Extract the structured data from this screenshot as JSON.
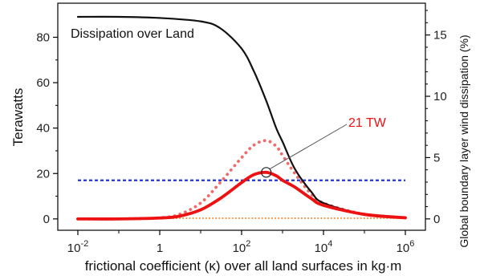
{
  "chart_data": {
    "type": "line",
    "xlabel": "frictional coefficient (κ) over all land surfaces in kg·m",
    "ylabel": "Terawatts",
    "y2label": "Global boundary layer wind dissipation (%)",
    "xscale": "log",
    "xlim": [
      0.01,
      1000000
    ],
    "ylim": [
      -5,
      95
    ],
    "y2lim": [
      -0.926,
      17.59
    ],
    "x_ticks": [
      {
        "value": 0.01,
        "base": "10",
        "exp": "-2"
      },
      {
        "value": 1,
        "base": "1",
        "exp": ""
      },
      {
        "value": 100,
        "base": "10",
        "exp": "2"
      },
      {
        "value": 10000,
        "base": "10",
        "exp": "4"
      },
      {
        "value": 1000000,
        "base": "10",
        "exp": "6"
      }
    ],
    "y_ticks": [
      0,
      20,
      40,
      60,
      80
    ],
    "y2_ticks": [
      0,
      5,
      10,
      15
    ],
    "grid": false,
    "colors": {
      "dissipation": "#111111",
      "extracted": "#ee1111",
      "extracted_dotted": "#f06a6a",
      "reference": "#2233dd",
      "baseline": "#f08a30"
    },
    "series": [
      {
        "style": "solid-black",
        "x": [
          0.01,
          0.1,
          1,
          10,
          30,
          100,
          200,
          400,
          700,
          1000,
          2000,
          5000,
          10000,
          100000,
          1000000
        ],
        "y": [
          89,
          89,
          88.5,
          87,
          84,
          75,
          65,
          52,
          40,
          34,
          22,
          12,
          7,
          2,
          0.5
        ]
      },
      {
        "style": "solid-red-thick",
        "x": [
          0.01,
          0.1,
          1,
          3,
          10,
          30,
          100,
          200,
          400,
          700,
          1000,
          2000,
          5000,
          10000,
          100000,
          1000000
        ],
        "y": [
          0,
          0,
          0.4,
          1.2,
          4,
          9,
          16,
          19.5,
          20.5,
          19,
          17,
          14,
          9,
          6,
          2,
          0.5
        ]
      },
      {
        "style": "dotted-red",
        "x": [
          0.01,
          0.1,
          1,
          3,
          10,
          30,
          100,
          200,
          400,
          700,
          1000,
          2000,
          5000,
          10000,
          100000,
          1000000
        ],
        "y": [
          0,
          0,
          0.5,
          2,
          7,
          16,
          27,
          32.5,
          34.5,
          32,
          28,
          20,
          11,
          7,
          2,
          0.5
        ]
      },
      {
        "style": "dashed-blue",
        "x": [
          0.01,
          1000000
        ],
        "y": [
          17,
          17
        ]
      },
      {
        "style": "dotted-orange",
        "x": [
          0.01,
          1000000
        ],
        "y": [
          0.3,
          0.3
        ]
      }
    ],
    "annotations": [
      {
        "text": "Dissipation over Land"
      },
      {
        "text": "21 TW",
        "point_x": 400,
        "point_y": 20.5
      }
    ]
  }
}
